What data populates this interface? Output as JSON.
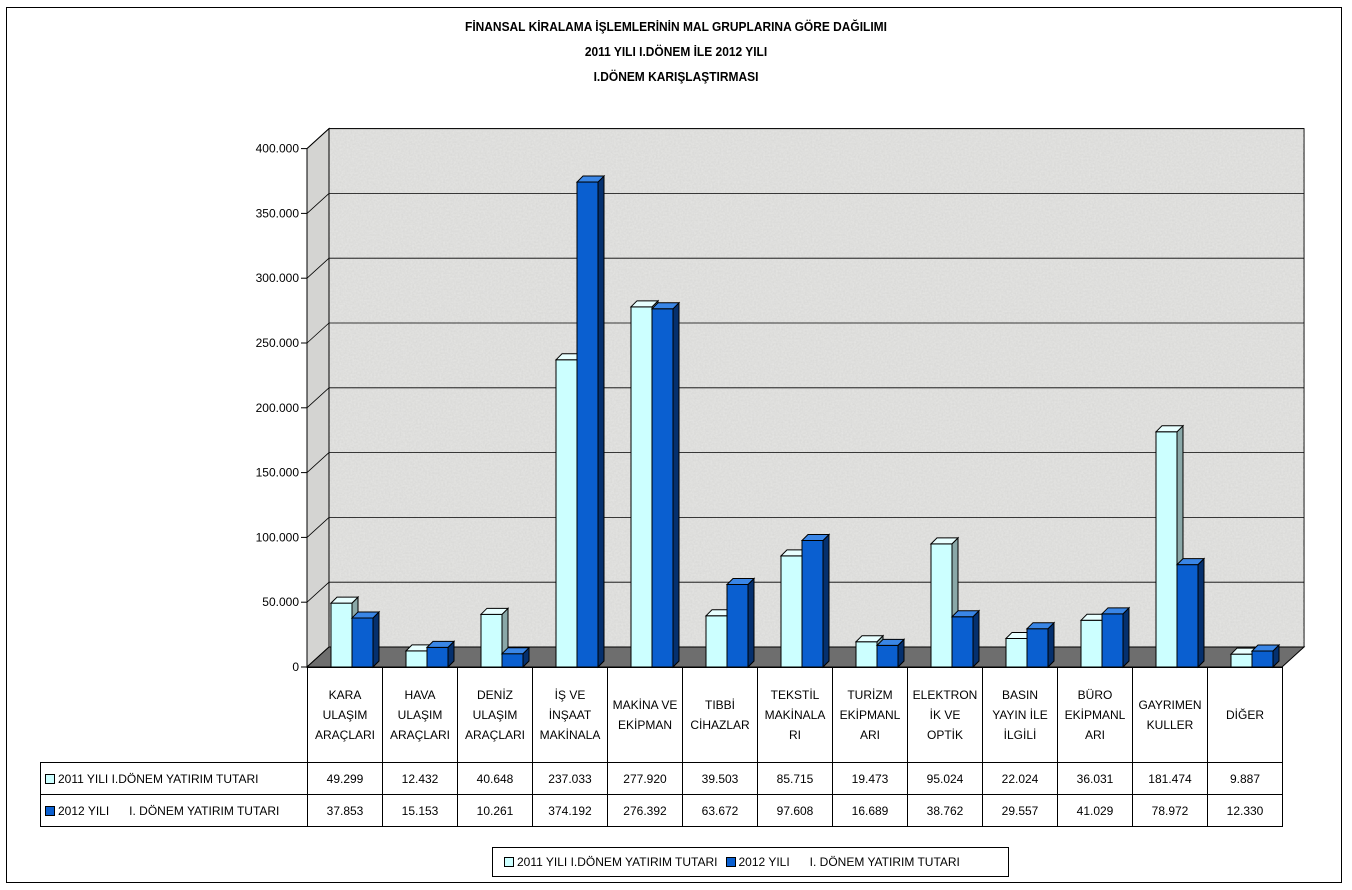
{
  "chart_data": {
    "type": "bar",
    "title_lines": [
      "FİNANSAL KİRALAMA İŞLEMLERİNİN MAL GRUPLARINA GÖRE DAĞILIMI",
      "2011 YILI I.DÖNEM İLE 2012  YILI",
      "I.DÖNEM KARIŞLAŞTIRMASI"
    ],
    "categories": [
      "KARA ULAŞIM ARAÇLARI",
      "HAVA ULAŞIM ARAÇLARI",
      "DENİZ ULAŞIM ARAÇLARI",
      "İŞ VE İNŞAAT MAKİNALA",
      "MAKİNA VE EKİPMAN",
      "TIBBİ CİHAZLAR",
      "TEKSTİL MAKİNALA RI",
      "TURİZM EKİPMANL ARI",
      "ELEKTRON İK VE OPTİK",
      "BASIN YAYIN İLE İLGİLİ",
      "BÜRO EKİPMANL ARI",
      "GAYRIMEN KULLER",
      "DİĞER"
    ],
    "category_lines": [
      [
        "KARA",
        "ULAŞIM",
        "ARAÇLARI"
      ],
      [
        "HAVA",
        "ULAŞIM",
        "ARAÇLARI"
      ],
      [
        "DENİZ",
        "ULAŞIM",
        "ARAÇLARI"
      ],
      [
        "İŞ VE",
        "İNŞAAT",
        "MAKİNALA"
      ],
      [
        "MAKİNA VE",
        "EKİPMAN"
      ],
      [
        "TIBBİ",
        "CİHAZLAR"
      ],
      [
        "TEKSTİL",
        "MAKİNALA",
        "RI"
      ],
      [
        "TURİZM",
        "EKİPMANL",
        "ARI"
      ],
      [
        "ELEKTRON",
        "İK VE",
        "OPTİK"
      ],
      [
        "BASIN",
        "YAYIN İLE",
        "İLGİLİ"
      ],
      [
        "BÜRO",
        "EKİPMANL",
        "ARI"
      ],
      [
        "GAYRIMEN",
        "KULLER"
      ],
      [
        "DİĞER"
      ]
    ],
    "series": [
      {
        "name": "2011 YILI I.DÖNEM YATIRIM TUTARI",
        "color": "#ccffff",
        "values": [
          49299,
          12432,
          40648,
          237033,
          277920,
          39503,
          85715,
          19473,
          95024,
          22024,
          36031,
          181474,
          9887
        ],
        "labels": [
          "49.299",
          "12.432",
          "40.648",
          "237.033",
          "277.920",
          "39.503",
          "85.715",
          "19.473",
          "95.024",
          "22.024",
          "36.031",
          "181.474",
          "9.887"
        ]
      },
      {
        "name": "2012 YILI      I. DÖNEM YATIRIM TUTARI",
        "color": "#0a5fd0",
        "values": [
          37853,
          15153,
          10261,
          374192,
          276392,
          63672,
          97608,
          16689,
          38762,
          29557,
          41029,
          78972,
          12330
        ],
        "labels": [
          "37.853",
          "15.153",
          "10.261",
          "374.192",
          "276.392",
          "63.672",
          "97.608",
          "16.689",
          "38.762",
          "29.557",
          "41.029",
          "78.972",
          "12.330"
        ]
      }
    ],
    "y_ticks": [
      "0",
      "50.000",
      "100.000",
      "150.000",
      "200.000",
      "250.000",
      "300.000",
      "350.000",
      "400.000"
    ],
    "ylim": [
      0,
      400000
    ],
    "grid": true,
    "legend_position": "bottom",
    "colors": {
      "wall": "#e6e6e4",
      "floor": "#6e6e6e",
      "series1_side": "#8aa8a8",
      "series2_side": "#05306e"
    }
  }
}
